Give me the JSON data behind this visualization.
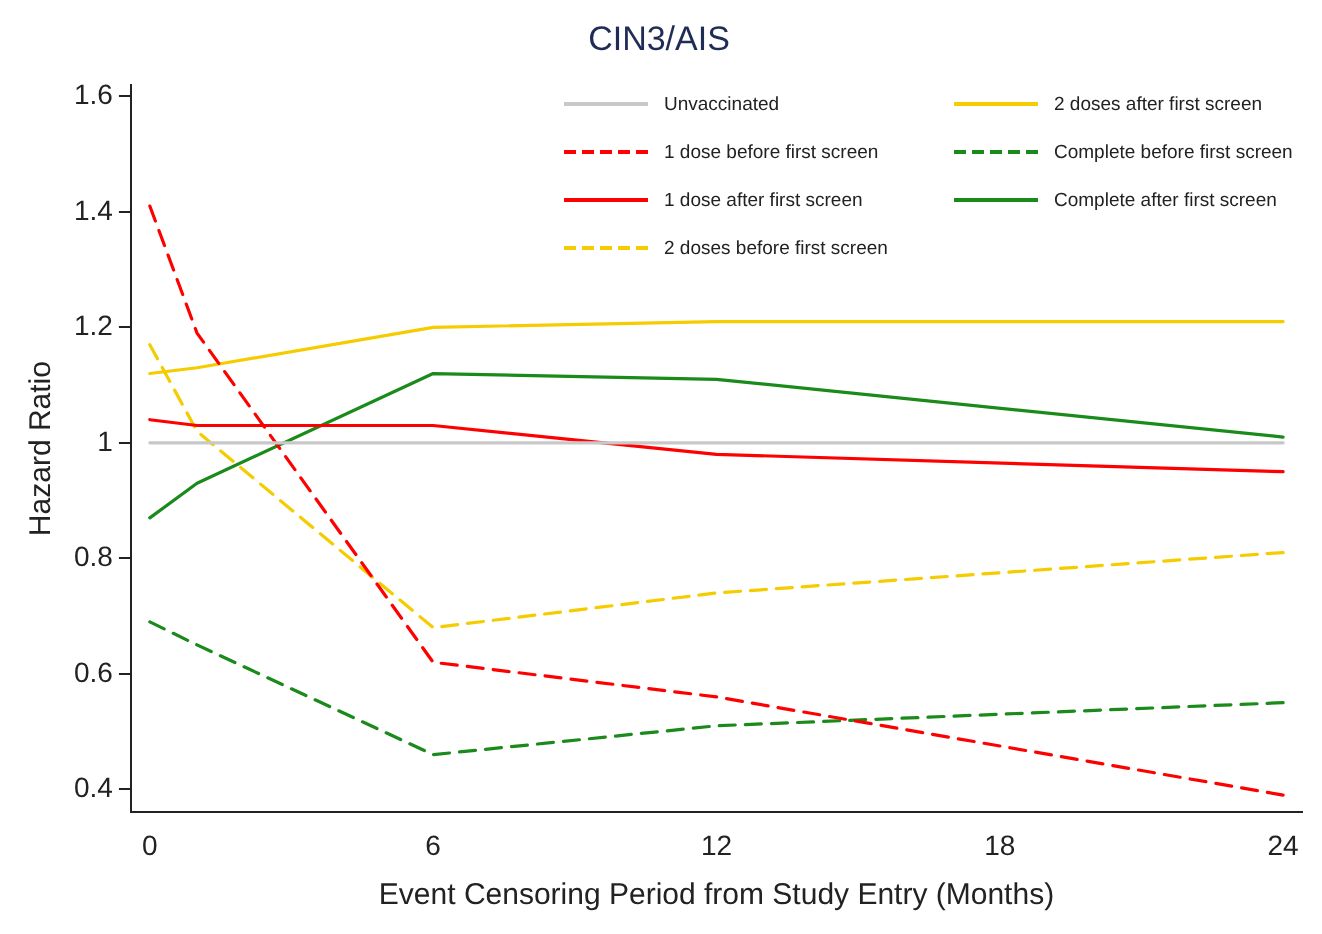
{
  "chart_data": {
    "type": "line",
    "title": "CIN3/AIS",
    "xlabel": "Event Censoring Period from Study Entry (Months)",
    "ylabel": "Hazard Ratio",
    "x": [
      0,
      1,
      6,
      12,
      24
    ],
    "series": [
      {
        "name": "Unvaccinated",
        "color": "#c8c8c8",
        "values": [
          1,
          1,
          1,
          1,
          1
        ],
        "line_style": "solid"
      },
      {
        "name": "1 dose before first screen",
        "color": "#ff0000",
        "values": [
          1.41,
          1.19,
          0.62,
          0.56,
          0.39
        ],
        "line_style": "dashed"
      },
      {
        "name": "1 dose after first screen",
        "color": "#ff0000",
        "values": [
          1.04,
          1.03,
          1.03,
          0.98,
          0.95
        ],
        "line_style": "solid"
      },
      {
        "name": "2 doses before first screen",
        "color": "#f5cc00",
        "values": [
          1.17,
          1.02,
          0.68,
          0.74,
          0.81
        ],
        "line_style": "dashed"
      },
      {
        "name": "2 doses after first screen",
        "color": "#f5cc00",
        "values": [
          1.12,
          1.13,
          1.2,
          1.21,
          1.21
        ],
        "line_style": "solid"
      },
      {
        "name": "Complete before first screen",
        "color": "#1a8a1a",
        "values": [
          0.69,
          0.65,
          0.46,
          0.51,
          0.55
        ],
        "line_style": "dashed"
      },
      {
        "name": "Complete after first screen",
        "color": "#1a8a1a",
        "values": [
          0.87,
          0.93,
          1.12,
          1.11,
          1.01
        ],
        "line_style": "solid"
      }
    ],
    "xlim": [
      -0.4,
      24.4
    ],
    "xticks": [
      0,
      6,
      12,
      18,
      24
    ],
    "ylim": [
      0.36,
      1.62
    ],
    "yticks": [
      {
        "value": 0.4,
        "label": "0.4"
      },
      {
        "value": 0.6,
        "label": "0.6"
      },
      {
        "value": 0.8,
        "label": "0.8"
      },
      {
        "value": 1,
        "label": "1"
      },
      {
        "value": 1.2,
        "label": "1.2"
      },
      {
        "value": 1.4,
        "label": "1.4"
      },
      {
        "value": 1.6,
        "label": "1.6"
      }
    ],
    "grid": false,
    "legend": "top right",
    "marker": "none"
  }
}
